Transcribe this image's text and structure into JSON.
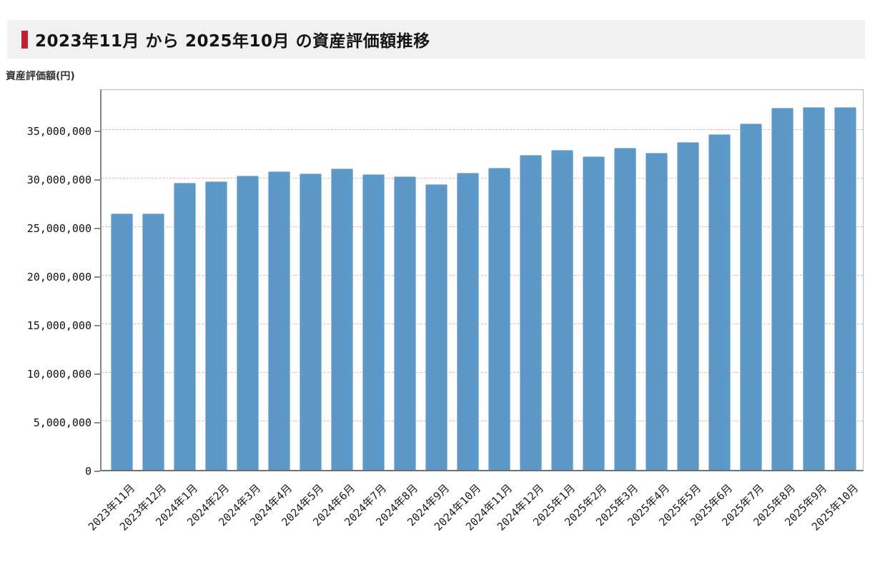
{
  "page": {
    "background": "#ffffff"
  },
  "header": {
    "title": "2023年11月 から 2025年10月 の資産評価額推移",
    "accent_color": "#c1202e",
    "band_color": "#f1f1f1"
  },
  "chart_data": {
    "type": "bar",
    "title": "2023年11月 から 2025年10月 の資産評価額推移",
    "ylabel": "資産評価額(円)",
    "xlabel": "",
    "legend": "none",
    "grid": "horizontal-dashed-red",
    "categories": [
      "2023年11月",
      "2023年12月",
      "2024年1月",
      "2024年2月",
      "2024年3月",
      "2024年4月",
      "2024年5月",
      "2024年6月",
      "2024年7月",
      "2024年8月",
      "2024年9月",
      "2024年10月",
      "2024年11月",
      "2024年12月",
      "2025年1月",
      "2025年2月",
      "2025年3月",
      "2025年4月",
      "2025年5月",
      "2025年6月",
      "2025年7月",
      "2025年8月",
      "2025年9月",
      "2025年10月"
    ],
    "values": [
      26350000,
      26400000,
      29500000,
      29700000,
      30300000,
      30700000,
      30450000,
      31000000,
      30400000,
      30200000,
      29350000,
      30550000,
      31100000,
      32400000,
      32900000,
      32250000,
      33150000,
      32600000,
      33700000,
      34500000,
      35600000,
      37250000,
      37300000,
      37350000
    ],
    "ylim": [
      0,
      39300000
    ],
    "yticks": [
      0,
      5000000,
      10000000,
      15000000,
      20000000,
      25000000,
      30000000,
      35000000
    ],
    "ytick_format": "comma",
    "colors": {
      "bar": "#5c99c8",
      "bar_edge": "#9cc0de",
      "gridline": "#f3adad",
      "axis": "#707070",
      "plot_border": "#b9b9b9",
      "text": "#1c1c1c"
    }
  }
}
